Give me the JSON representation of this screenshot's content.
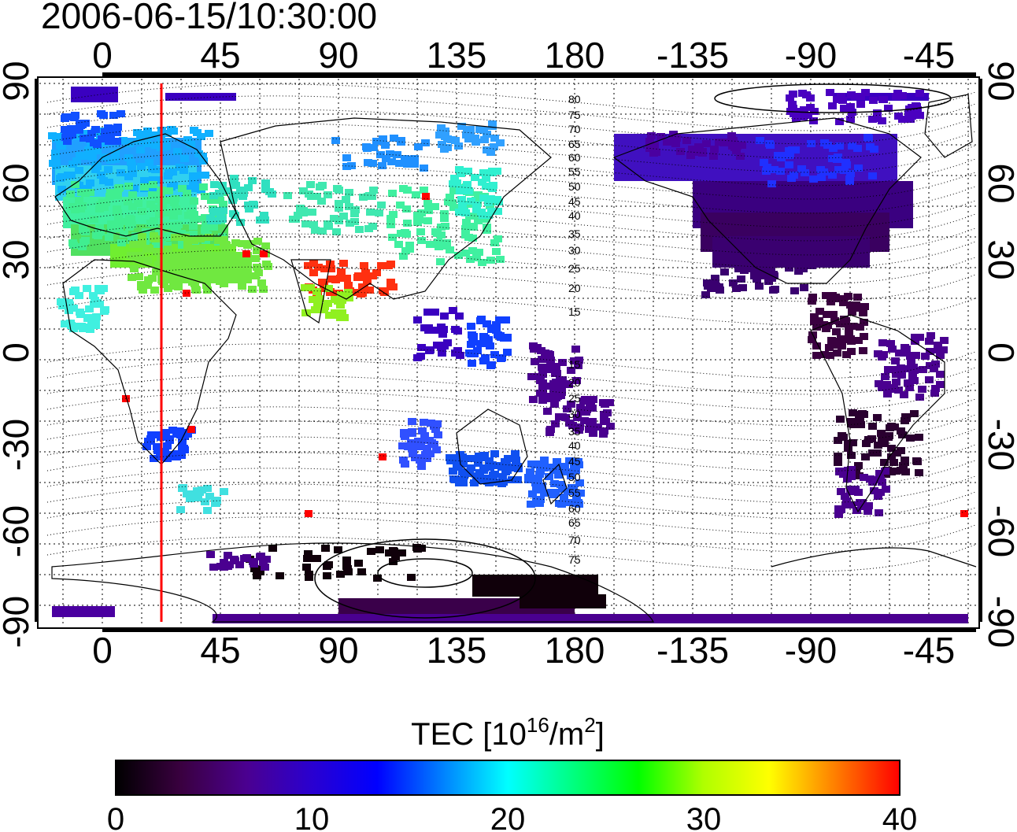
{
  "title": "2006-06-15/10:30:00",
  "axes": {
    "top_lon_labels": [
      "0",
      "45",
      "90",
      "135",
      "180",
      "-135",
      "-90",
      "-45"
    ],
    "bottom_lon_labels": [
      "0",
      "45",
      "90",
      "135",
      "180",
      "-135",
      "-90",
      "-45"
    ],
    "left_lat_labels": [
      "90",
      "60",
      "30",
      "0",
      "-30",
      "-60",
      "-90"
    ],
    "right_lat_labels": [
      "90",
      "60",
      "30",
      "0",
      "-30",
      "-60",
      "-90"
    ]
  },
  "contour_labels": [
    "80",
    "75",
    "70",
    "65",
    "60",
    "55",
    "50",
    "45",
    "40",
    "35",
    "30",
    "25",
    "20",
    "15",
    "15",
    "20",
    "25",
    "30",
    "35",
    "40",
    "45",
    "50",
    "55",
    "60",
    "65",
    "70",
    "75"
  ],
  "marker_line": {
    "color": "#ff0000"
  },
  "colorbar": {
    "title_prefix": "TEC  [10",
    "title_sup1": "16",
    "title_mid": "/m",
    "title_sup2": "2",
    "title_suffix": "]",
    "tick_labels": [
      "0",
      "10",
      "20",
      "30",
      "40"
    ],
    "range": [
      0,
      40
    ],
    "colors": [
      "#000000",
      "#3a0040",
      "#4b0090",
      "#2a00d0",
      "#0000ff",
      "#0080ff",
      "#00ffff",
      "#00ff80",
      "#00ff00",
      "#b0ff00",
      "#ffff00",
      "#ff8000",
      "#ff0000"
    ]
  },
  "colors": {
    "tec_high": "#ff0000",
    "tec_mid": "#00ff00",
    "tec_low": "#4b0082",
    "tec_cyan": "#00e0ff",
    "tec_blue": "#1040ff"
  }
}
